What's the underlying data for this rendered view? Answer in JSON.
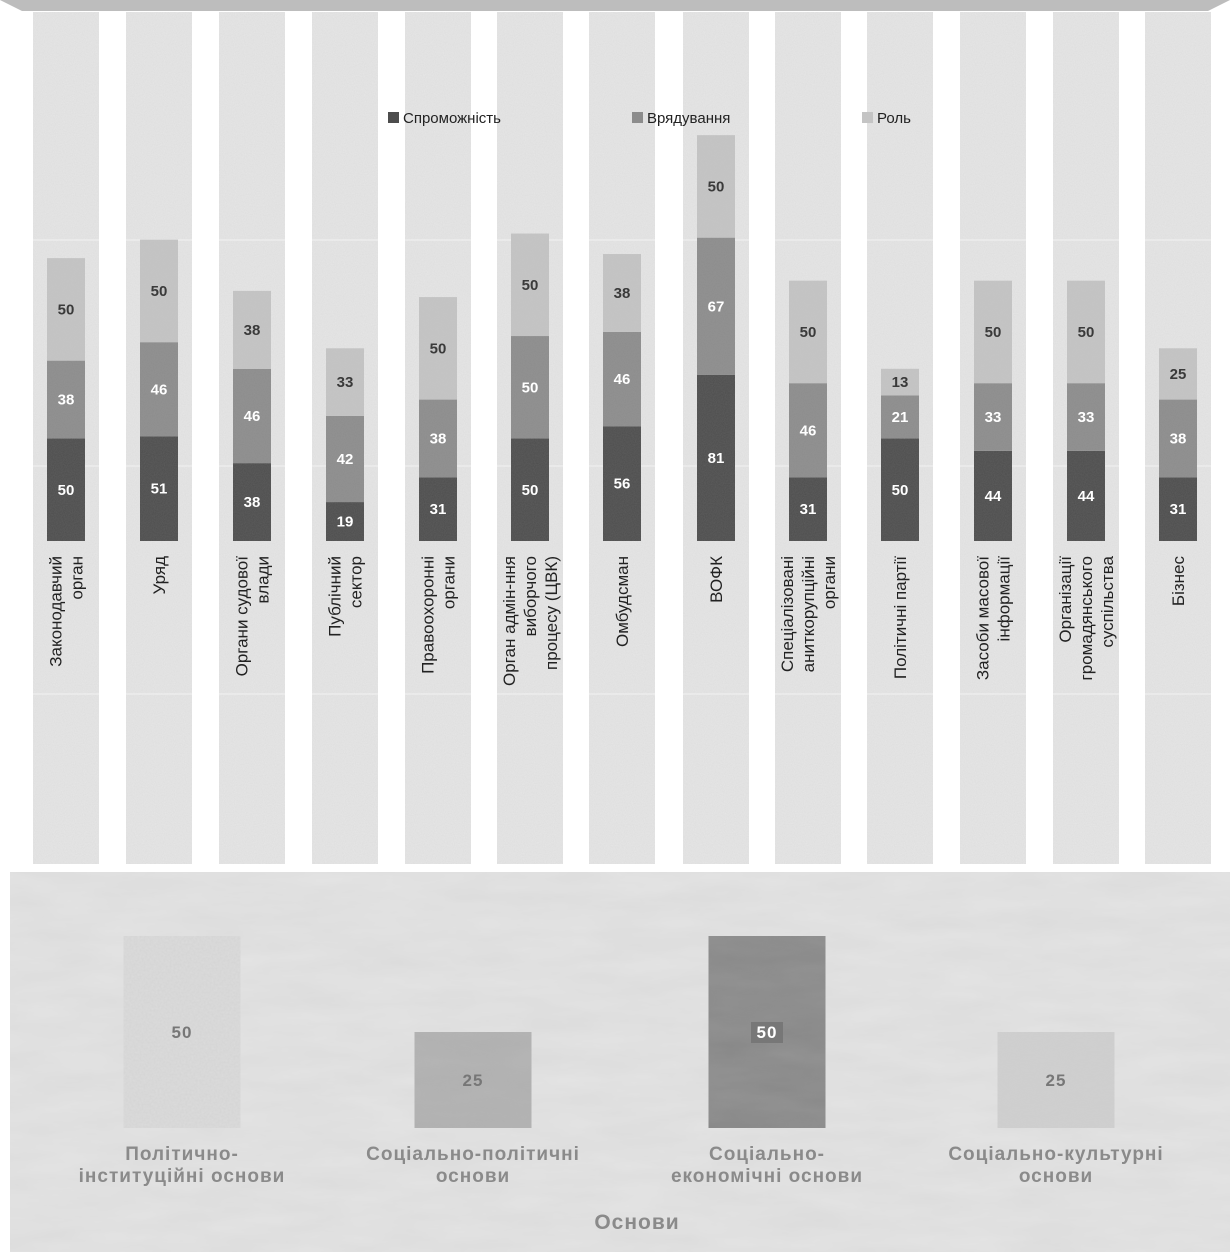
{
  "chart_data": [
    {
      "type": "bar",
      "stacked": true,
      "orientation": "vertical",
      "categories": [
        [
          "Законодавчий",
          "орган"
        ],
        [
          "Уряд"
        ],
        [
          "Органи судової",
          "влади"
        ],
        [
          "Публічний",
          "сектор"
        ],
        [
          "Правоохоронні",
          "органи"
        ],
        [
          "Орган адмін-ння",
          "виборчого",
          "процесу (ЦВК)"
        ],
        [
          "Омбудсман"
        ],
        [
          "ВОФК"
        ],
        [
          "Спеціалізовані",
          "аниткорупційні",
          "органи"
        ],
        [
          "Політичні партії"
        ],
        [
          "Засоби масової",
          "інформації"
        ],
        [
          "Організації",
          "громадянського",
          "суспільства"
        ],
        [
          "Бізнес"
        ]
      ],
      "series": [
        {
          "name": "Спроможність",
          "color": "#4d4d4d",
          "values": [
            50,
            51,
            38,
            19,
            31,
            50,
            56,
            81,
            31,
            50,
            44,
            44,
            31
          ]
        },
        {
          "name": "Врядування",
          "color": "#8c8c8c",
          "values": [
            38,
            46,
            46,
            42,
            38,
            50,
            46,
            67,
            46,
            21,
            33,
            33,
            38
          ]
        },
        {
          "name": "Роль",
          "color": "#c4c4c4",
          "values": [
            50,
            50,
            38,
            33,
            50,
            50,
            38,
            50,
            50,
            13,
            50,
            50,
            25
          ]
        }
      ],
      "legend_position": "top-center",
      "grid": false,
      "title": "",
      "xlabel": "",
      "ylabel": ""
    },
    {
      "type": "bar",
      "orientation": "vertical",
      "categories": [
        [
          "Політично-",
          "інституційні основи"
        ],
        [
          "Соціально-політичні",
          "основи"
        ],
        [
          "Соціально-",
          "економічні основи"
        ],
        [
          "Соціально-культурні",
          "основи"
        ]
      ],
      "values": [
        50,
        25,
        50,
        25
      ],
      "colors": [
        "#dcdcdc",
        "#b0b0b0",
        "#888888",
        "#cfcfcf"
      ],
      "xlabel": "Основи",
      "title": "",
      "ylabel": ""
    }
  ]
}
